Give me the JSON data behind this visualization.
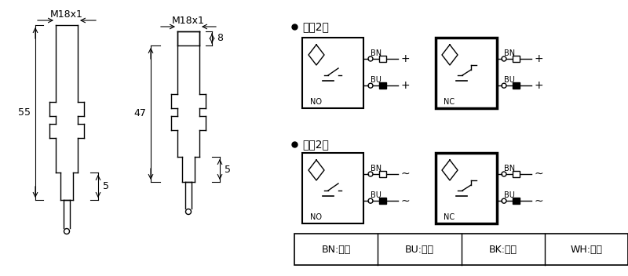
{
  "bg_color": "#ffffff",
  "line_color": "#000000",
  "fig_width": 8.0,
  "fig_height": 3.52,
  "dpi": 100,
  "circuit_title_dc": "直兗2线",
  "circuit_title_ac": "交兗2线",
  "no_label": "NO",
  "nc_label": "NC",
  "bn_label": "BN",
  "bu_label": "BU",
  "legend": [
    {
      "code": "BN",
      "name": "棕色"
    },
    {
      "code": "BU",
      "name": "兰色"
    },
    {
      "code": "BK",
      "name": "黑色"
    },
    {
      "code": "WH",
      "name": "白色"
    }
  ]
}
